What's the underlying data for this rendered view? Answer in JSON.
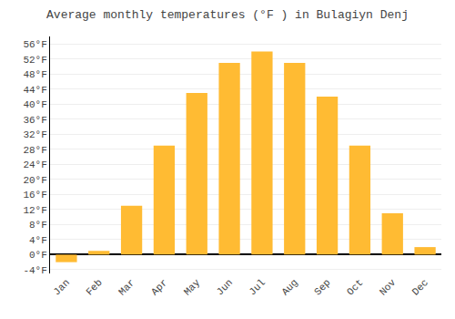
{
  "chart_data": {
    "type": "bar",
    "title": "Average monthly temperatures (°F ) in Bulagiyn Denj",
    "categories": [
      "Jan",
      "Feb",
      "Mar",
      "Apr",
      "May",
      "Jun",
      "Jul",
      "Aug",
      "Sep",
      "Oct",
      "Nov",
      "Dec"
    ],
    "values": [
      -2,
      1,
      13,
      29,
      43,
      51,
      54,
      51,
      42,
      29,
      11,
      2
    ],
    "color": "#FFBB33",
    "ylim": [
      -5,
      58
    ],
    "yticks": [
      {
        "value": -4,
        "label": "-4°F"
      },
      {
        "value": 0,
        "label": "0°F"
      },
      {
        "value": 4,
        "label": "4°F"
      },
      {
        "value": 8,
        "label": "8°F"
      },
      {
        "value": 12,
        "label": "12°F"
      },
      {
        "value": 16,
        "label": "16°F"
      },
      {
        "value": 20,
        "label": "20°F"
      },
      {
        "value": 24,
        "label": "24°F"
      },
      {
        "value": 28,
        "label": "28°F"
      },
      {
        "value": 32,
        "label": "32°F"
      },
      {
        "value": 36,
        "label": "36°F"
      },
      {
        "value": 40,
        "label": "40°F"
      },
      {
        "value": 44,
        "label": "44°F"
      },
      {
        "value": 48,
        "label": "48°F"
      },
      {
        "value": 52,
        "label": "52°F"
      },
      {
        "value": 56,
        "label": "56°F"
      }
    ],
    "grid": true
  }
}
